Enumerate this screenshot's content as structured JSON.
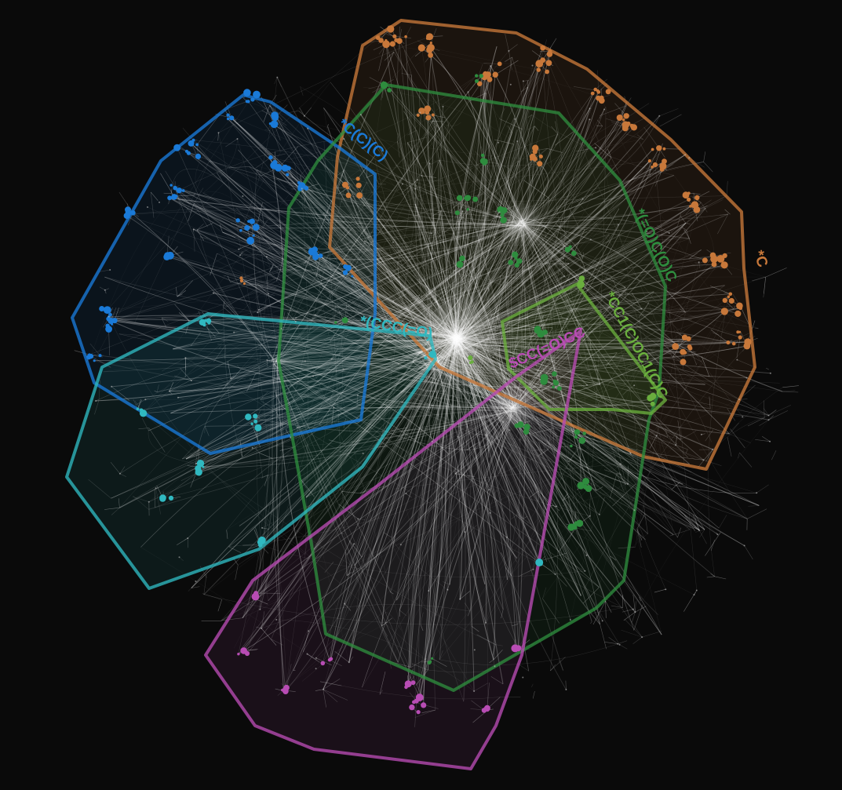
{
  "graph": {
    "background": "#0a0a0a",
    "edge_color": "#ffffff",
    "clusters": [
      {
        "id": "orange",
        "label": "*C",
        "color": "#c8783a"
      },
      {
        "id": "blue",
        "label": "*C(C)(C)",
        "color": "#1a7ad8"
      },
      {
        "id": "green",
        "label": "*(=O)C(O)C",
        "color": "#2e8c3e"
      },
      {
        "id": "cyan",
        "label": "*(CCC(=O)",
        "color": "#30b8c0"
      },
      {
        "id": "lime",
        "label": "*CC1(C)OC1(C)C",
        "color": "#6aae3e"
      },
      {
        "id": "magenta",
        "label": "$CC(=O)CC",
        "color": "#b84cb4"
      }
    ]
  }
}
